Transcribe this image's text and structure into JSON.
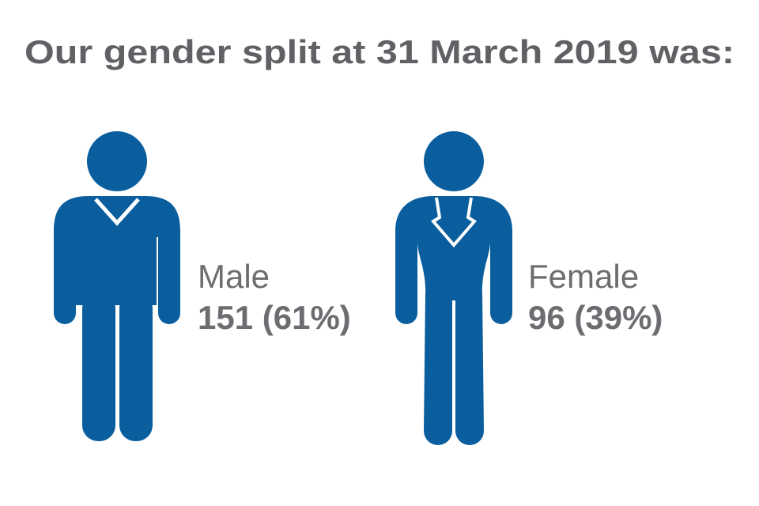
{
  "title": "Our gender split at 31 March 2019 was:",
  "groups": [
    {
      "label": "Male",
      "value": "151 (61%)"
    },
    {
      "label": "Female",
      "value": "96 (39%)"
    }
  ]
}
